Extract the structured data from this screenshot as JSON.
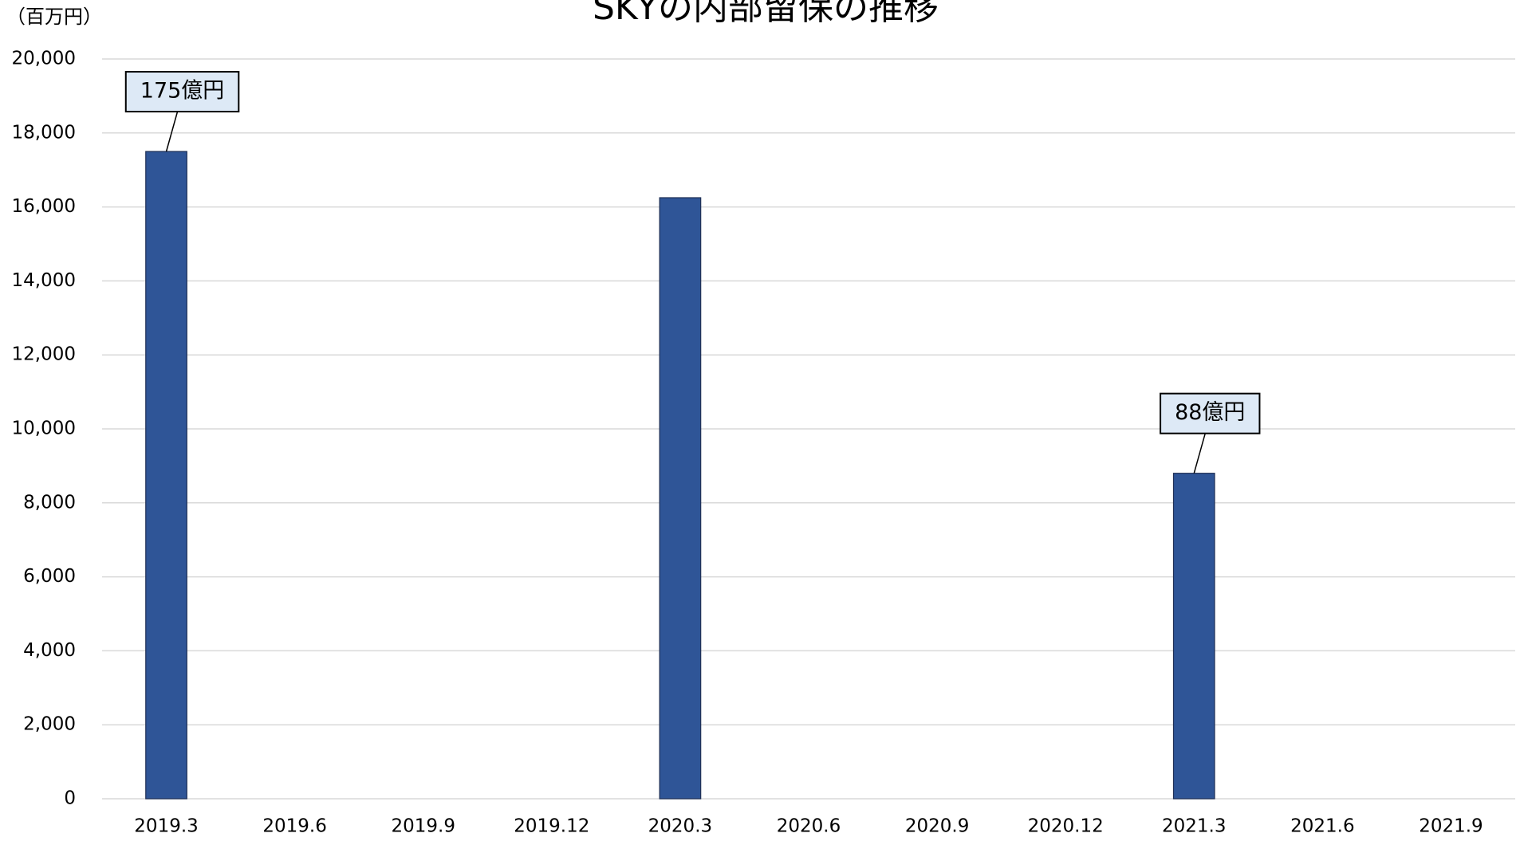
{
  "chart_data": {
    "type": "bar",
    "title": "SKYの内部留保の推移",
    "y_unit_label": "（百万円）",
    "categories": [
      "2019.3",
      "2019.6",
      "2019.9",
      "2019.12",
      "2020.3",
      "2020.6",
      "2020.9",
      "2020.12",
      "2021.3",
      "2021.6",
      "2021.9"
    ],
    "values": [
      17500,
      null,
      null,
      null,
      16250,
      null,
      null,
      null,
      8800,
      null,
      null
    ],
    "color": "#2f5597",
    "ylim": [
      0,
      20000
    ],
    "yticks": [
      0,
      {
        "value": 2000,
        "label": "2,000"
      },
      {
        "value": 4000,
        "label": "4,000"
      },
      {
        "value": 6000,
        "label": "6,000"
      },
      {
        "value": 8000,
        "label": "8,000"
      },
      {
        "value": 10000,
        "label": "10,000"
      },
      {
        "value": 12000,
        "label": "12,000"
      },
      {
        "value": 14000,
        "label": "14,000"
      },
      {
        "value": 16000,
        "label": "16,000"
      },
      {
        "value": 18000,
        "label": "18,000"
      },
      {
        "value": 20000,
        "label": "20,000"
      }
    ],
    "grid": true,
    "annotations": [
      {
        "text": "175億円",
        "category": "2019.3"
      },
      {
        "text": "88億円",
        "category": "2021.3"
      }
    ]
  }
}
